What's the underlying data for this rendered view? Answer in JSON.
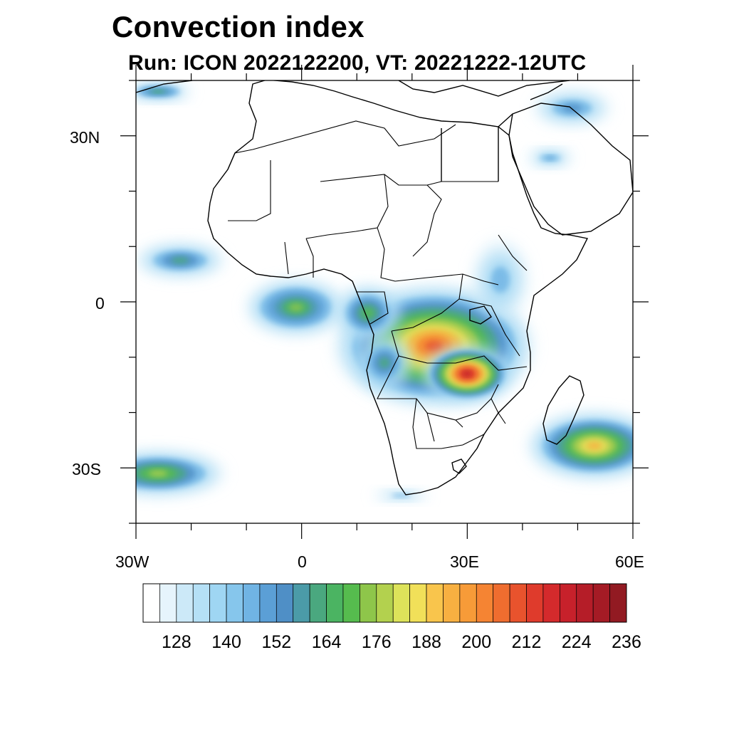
{
  "title": "Convection index",
  "subtitle": "Run: ICON 2022122200,  VT: 20221222-12UTC",
  "map": {
    "region": "Africa",
    "projection": "cylindrical equidistant",
    "lon_range": [
      -30,
      60
    ],
    "lat_range": [
      -40,
      40
    ],
    "lon_tick_labels": [
      "30W",
      "0",
      "30E",
      "60E"
    ],
    "lat_tick_labels": [
      "30N",
      "0",
      "30S"
    ]
  },
  "colorbar": {
    "labels": [
      "128",
      "140",
      "152",
      "164",
      "176",
      "188",
      "200",
      "212",
      "224",
      "236"
    ],
    "colors": [
      "#ffffff",
      "#e6f4fc",
      "#cce9f8",
      "#b5e0f6",
      "#9fd6f3",
      "#86c6ec",
      "#70b4e4",
      "#5b9fd6",
      "#4f8fc6",
      "#4b9ba8",
      "#4aa87f",
      "#4bb462",
      "#56bc4e",
      "#8ec64a",
      "#b3d14e",
      "#dde35a",
      "#f1e059",
      "#f9c54c",
      "#f8b041",
      "#f79b38",
      "#f58433",
      "#ef6d2f",
      "#e8532d",
      "#df3b2c",
      "#d42a2c",
      "#c7212b",
      "#b51d28",
      "#a51b25",
      "#921a22"
    ]
  },
  "fields": [
    {
      "name": "central-africa-band",
      "lon": 24,
      "lat": -8,
      "extent_lon": 18,
      "extent_lat": 11,
      "level": 22
    },
    {
      "name": "zambia-core",
      "lon": 30,
      "lat": -13,
      "extent_lon": 8,
      "extent_lat": 5,
      "level": 26
    },
    {
      "name": "gulf-of-guinea",
      "lon": -1,
      "lat": -1,
      "extent_lon": 9,
      "extent_lat": 5,
      "level": 13
    },
    {
      "name": "gabon-congo",
      "lon": 12,
      "lat": -2,
      "extent_lon": 6,
      "extent_lat": 5,
      "level": 12
    },
    {
      "name": "angola-west",
      "lon": 15,
      "lat": -11,
      "extent_lon": 5,
      "extent_lat": 5,
      "level": 10
    },
    {
      "name": "mozambique-channel",
      "lon": 53,
      "lat": -26,
      "extent_lon": 12,
      "extent_lat": 6,
      "level": 18
    },
    {
      "name": "south-atlantic",
      "lon": -26,
      "lat": -31,
      "extent_lon": 12,
      "extent_lat": 4,
      "level": 14
    },
    {
      "name": "tropical-atlantic-north",
      "lon": -22,
      "lat": 7.5,
      "extent_lon": 8,
      "extent_lat": 3,
      "level": 10
    },
    {
      "name": "east-africa",
      "lon": 36,
      "lat": 4,
      "extent_lon": 5,
      "extent_lat": 7,
      "level": 6
    },
    {
      "name": "arabian-sea-north",
      "lon": 49,
      "lat": 35,
      "extent_lon": 7,
      "extent_lat": 3,
      "level": 8
    },
    {
      "name": "arabia",
      "lon": 45,
      "lat": 26,
      "extent_lon": 4,
      "extent_lat": 1.5,
      "level": 7
    },
    {
      "name": "northwest-atlantic",
      "lon": -26,
      "lat": 38,
      "extent_lon": 6,
      "extent_lat": 1.5,
      "level": 11
    },
    {
      "name": "southern-ocean-streak",
      "lon": 18,
      "lat": -35,
      "extent_lon": 5,
      "extent_lat": 1,
      "level": 6
    }
  ]
}
